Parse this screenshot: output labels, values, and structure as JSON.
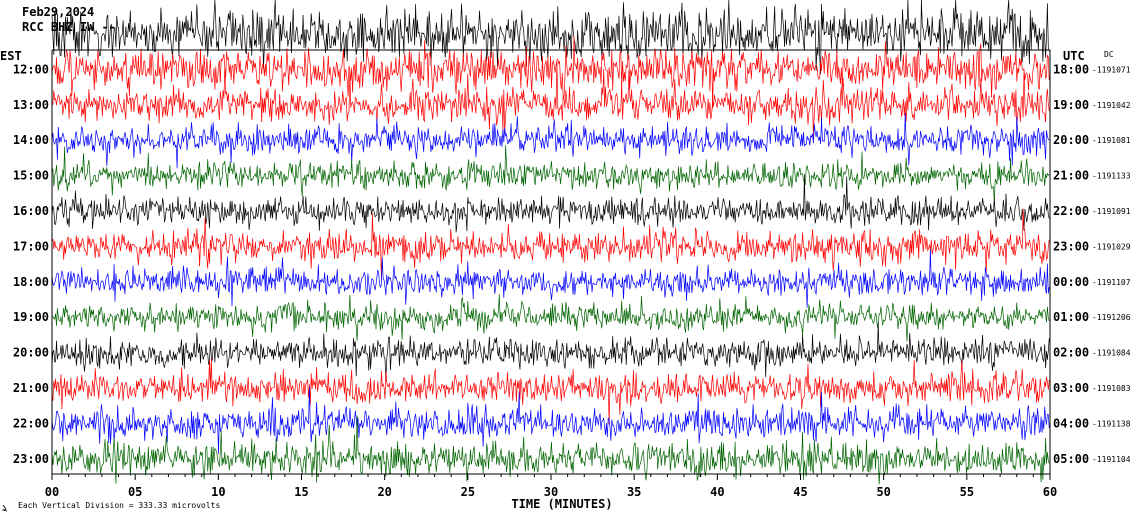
{
  "header": {
    "date": "Feb29,2024",
    "station": "RCC BHZ IW --"
  },
  "left_axis_title": "EST",
  "right_axis_title": "UTC",
  "dc_label": "DC",
  "footer": {
    "scale_note": "Each Vertical Division =  333.33 microvolts"
  },
  "colors": {
    "background": "#ffffff",
    "trace_cycle": [
      "#000000",
      "#ff0000",
      "#0000ff",
      "#006400"
    ]
  },
  "chart_data": {
    "type": "helicorder",
    "xlabel": "TIME (MINUTES)",
    "x_ticks": [
      "00",
      "05",
      "10",
      "15",
      "20",
      "25",
      "30",
      "35",
      "40",
      "45",
      "50",
      "55",
      "60"
    ],
    "xlim": [
      0,
      60
    ],
    "rows": [
      {
        "est": "",
        "utc": "",
        "dc": "",
        "color": "#000000",
        "noise": 1.9
      },
      {
        "est": "12:00",
        "utc": "18:00",
        "dc": "1191071",
        "color": "#ff0000",
        "noise": 1.5
      },
      {
        "est": "13:00",
        "utc": "19:00",
        "dc": "1191042",
        "color": "#ff0000",
        "noise": 1.3
      },
      {
        "est": "14:00",
        "utc": "20:00",
        "dc": "1191081",
        "color": "#0000ff",
        "noise": 1.1
      },
      {
        "est": "15:00",
        "utc": "21:00",
        "dc": "1191133",
        "color": "#006400",
        "noise": 1.0
      },
      {
        "est": "16:00",
        "utc": "22:00",
        "dc": "1191091",
        "color": "#000000",
        "noise": 1.1
      },
      {
        "est": "17:00",
        "utc": "23:00",
        "dc": "1191029",
        "color": "#ff0000",
        "noise": 1.2
      },
      {
        "est": "18:00",
        "utc": "00:00",
        "dc": "1191107",
        "color": "#0000ff",
        "noise": 1.1
      },
      {
        "est": "19:00",
        "utc": "01:00",
        "dc": "1191206",
        "color": "#006400",
        "noise": 1.0
      },
      {
        "est": "20:00",
        "utc": "02:00",
        "dc": "1191084",
        "color": "#000000",
        "noise": 1.1
      },
      {
        "est": "21:00",
        "utc": "03:00",
        "dc": "1191083",
        "color": "#ff0000",
        "noise": 1.2
      },
      {
        "est": "22:00",
        "utc": "04:00",
        "dc": "1191138",
        "color": "#0000ff",
        "noise": 1.2
      },
      {
        "est": "23:00",
        "utc": "05:00",
        "dc": "1191104",
        "color": "#006400",
        "noise": 1.3
      }
    ]
  }
}
